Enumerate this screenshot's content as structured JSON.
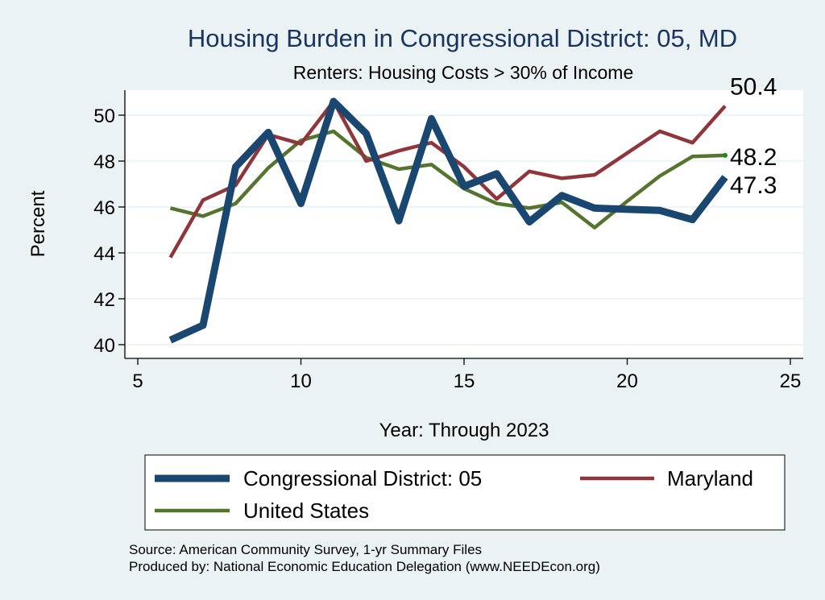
{
  "colors": {
    "background": "#eaf2f3",
    "plot_bg": "#ffffff",
    "grid": "#eaf2f3",
    "title": "#1a3461",
    "district": "#1a476f",
    "maryland": "#90353b",
    "us": "#55752f",
    "us_end_dot": "#1a8a1a"
  },
  "chart_data": {
    "type": "line",
    "title": "Housing Burden in Congressional District:  05, MD",
    "subtitle": "Renters: Housing Costs > 30% of Income",
    "xlabel": "Year: Through 2023",
    "ylabel": "Percent",
    "xlim": [
      5,
      25
    ],
    "ylim": [
      39.5,
      51.2
    ],
    "xticks": [
      5,
      10,
      15,
      20,
      25
    ],
    "yticks": [
      40,
      42,
      44,
      46,
      48,
      50
    ],
    "x": [
      6,
      7,
      8,
      9,
      10,
      11,
      12,
      13,
      14,
      15,
      16,
      17,
      18,
      19,
      20,
      21,
      22,
      23
    ],
    "series": [
      {
        "key": "district",
        "name": "Congressional District:  05",
        "values": [
          40.2,
          40.85,
          47.75,
          49.25,
          46.15,
          50.6,
          49.2,
          45.4,
          49.85,
          46.9,
          47.45,
          45.35,
          46.5,
          45.95,
          45.9,
          45.85,
          45.45,
          47.3
        ],
        "end_label": "47.3"
      },
      {
        "key": "maryland",
        "name": "Maryland",
        "values": [
          43.8,
          46.3,
          46.95,
          49.15,
          48.75,
          50.6,
          48.0,
          48.45,
          48.8,
          47.75,
          46.35,
          47.55,
          47.25,
          47.4,
          48.35,
          49.3,
          48.8,
          50.4
        ],
        "end_label": "50.4"
      },
      {
        "key": "us",
        "name": "United States",
        "values": [
          45.95,
          45.6,
          46.15,
          47.7,
          48.9,
          49.3,
          48.15,
          47.65,
          47.85,
          46.8,
          46.15,
          45.95,
          46.2,
          45.1,
          46.25,
          47.35,
          48.2,
          48.25
        ],
        "end_label": "48.2"
      }
    ],
    "legend": {
      "placement": "bottom",
      "entries": [
        "Congressional District:  05",
        "Maryland",
        "United States"
      ]
    }
  },
  "source": {
    "line1": "Source: American Community Survey, 1-yr Summary Files",
    "line2": "Produced by: National Economic Education Delegation (www.NEEDEcon.org)"
  }
}
